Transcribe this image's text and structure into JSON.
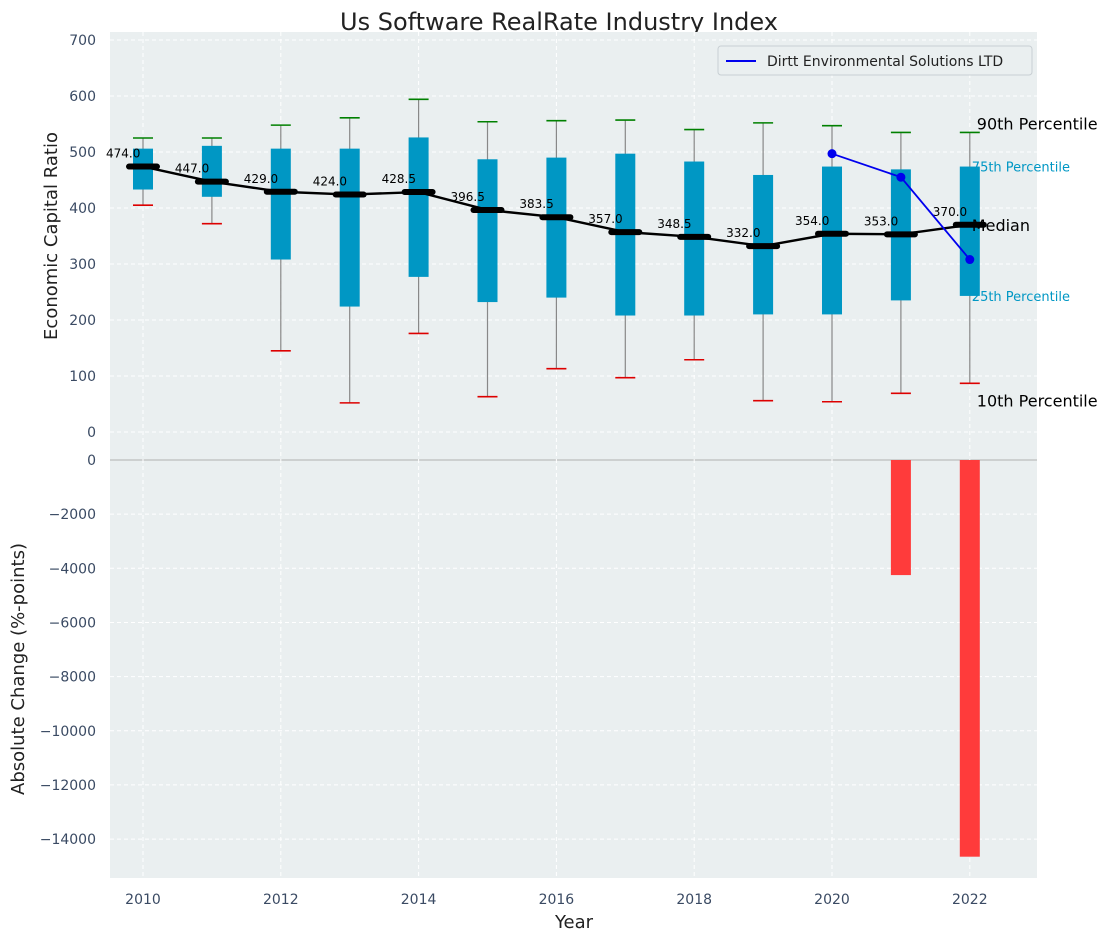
{
  "chart_data": {
    "title": "Us Software RealRate Industry Index",
    "xlabel": "Year",
    "years": [
      2010,
      2011,
      2012,
      2013,
      2014,
      2015,
      2016,
      2017,
      2018,
      2019,
      2020,
      2021,
      2022
    ],
    "x_ticks": [
      "2010",
      "2012",
      "2014",
      "2016",
      "2018",
      "2020",
      "2022"
    ],
    "top_panel": {
      "type": "box",
      "ylabel": "Economic Capital Ratio",
      "ylim": [
        0,
        700
      ],
      "y_ticks": [
        "0",
        "100",
        "200",
        "300",
        "400",
        "500",
        "600",
        "700"
      ],
      "p10": [
        405,
        372,
        145,
        52,
        176,
        63,
        113,
        97,
        129,
        56,
        54,
        69,
        87
      ],
      "p25": [
        433,
        420,
        308,
        224,
        277,
        232,
        240,
        208,
        208,
        210,
        210,
        235,
        243
      ],
      "median": [
        474.0,
        447.0,
        429.0,
        424.0,
        428.5,
        396.5,
        383.5,
        357.0,
        348.5,
        332.0,
        354.0,
        353.0,
        370.0
      ],
      "median_labels": [
        "474.0",
        "447.0",
        "429.0",
        "424.0",
        "428.5",
        "396.5",
        "383.5",
        "357.0",
        "348.5",
        "332.0",
        "354.0",
        "353.0",
        "370.0"
      ],
      "p75": [
        506,
        511,
        506,
        506,
        526,
        487,
        490,
        497,
        483,
        459,
        474,
        469,
        474
      ],
      "p90": [
        525,
        525,
        548,
        561,
        594,
        554,
        556,
        557,
        540,
        552,
        547,
        535,
        535
      ],
      "company_series": {
        "name": "Dirtt Environmental Solutions LTD",
        "years": [
          2020,
          2021,
          2022
        ],
        "values": [
          497,
          455,
          308
        ]
      },
      "annotations": {
        "p90": "90th Percentile",
        "p75": "75th Percentile",
        "median": "Median",
        "p25": "25th Percentile",
        "p10": "10th Percentile"
      }
    },
    "bottom_panel": {
      "type": "bar",
      "ylabel": "Absolute Change (%-points)",
      "ylim": [
        -15400,
        0
      ],
      "y_ticks": [
        "0",
        "−2000",
        "−4000",
        "−6000",
        "−8000",
        "−10000",
        "−12000",
        "−14000"
      ],
      "y_tick_values": [
        0,
        -2000,
        -4000,
        -6000,
        -8000,
        -10000,
        -12000,
        -14000
      ],
      "years": [
        2021,
        2022
      ],
      "values": [
        -4250,
        -14650
      ]
    },
    "colors": {
      "box": "#0097c4",
      "median_line": "#000000",
      "p90_cap": "#008000",
      "p10_cap": "#dd0000",
      "whisker": "#888888",
      "company": "#0000ee",
      "bar": "#ff3b3b",
      "plot_bg": "#eaeff0"
    }
  }
}
